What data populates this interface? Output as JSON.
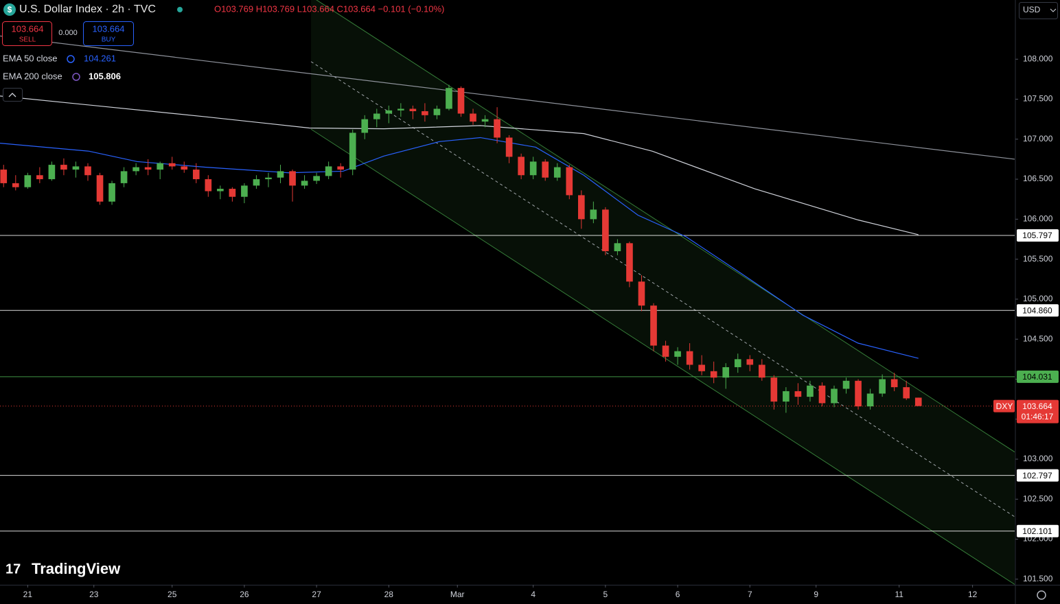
{
  "header": {
    "title": "U.S. Dollar Index · 2h · TVC",
    "ohlc": "O103.769 H103.769 L103.664 C103.664 −0.101 (−0.10%)",
    "sell_price": "103.664",
    "sell_label": "SELL",
    "spread": "0.000",
    "buy_price": "103.664",
    "buy_label": "BUY",
    "ema50_label": "EMA 50 close",
    "ema50_value": "104.261",
    "ema200_label": "EMA 200 close",
    "ema200_value": "105.806",
    "currency": "USD",
    "brand": "TradingView"
  },
  "chart_data": {
    "type": "candlestick",
    "up_color": "#4caf50",
    "down_color": "#e53935",
    "xlim": [
      -0.3,
      84
    ],
    "ylim": [
      101.43,
      108.74
    ],
    "xticks": [
      {
        "value": 2,
        "label": "21"
      },
      {
        "value": 7.5,
        "label": "23"
      },
      {
        "value": 14,
        "label": "25"
      },
      {
        "value": 20,
        "label": "26"
      },
      {
        "value": 26,
        "label": "27"
      },
      {
        "value": 32,
        "label": "28"
      },
      {
        "value": 37.7,
        "label": "Mar"
      },
      {
        "value": 44,
        "label": "4"
      },
      {
        "value": 50,
        "label": "5"
      },
      {
        "value": 56,
        "label": "6"
      },
      {
        "value": 62,
        "label": "7"
      },
      {
        "value": 67.5,
        "label": "9"
      },
      {
        "value": 74.4,
        "label": "11"
      },
      {
        "value": 80.5,
        "label": "12"
      }
    ],
    "yticks": [
      {
        "value": 101.5,
        "label": "101.500"
      },
      {
        "value": 102,
        "label": "102.000"
      },
      {
        "value": 102.5,
        "label": "102.500"
      },
      {
        "value": 103,
        "label": "103.000"
      },
      {
        "value": 103.5,
        "label": "103.500"
      },
      {
        "value": 104,
        "label": "104.000"
      },
      {
        "value": 104.5,
        "label": "104.500"
      },
      {
        "value": 105,
        "label": "105.000"
      },
      {
        "value": 105.5,
        "label": "105.500"
      },
      {
        "value": 106,
        "label": "106.000"
      },
      {
        "value": 106.5,
        "label": "106.500"
      },
      {
        "value": 107,
        "label": "107.000"
      },
      {
        "value": 107.5,
        "label": "107.500"
      },
      {
        "value": 108,
        "label": "108.000"
      }
    ],
    "candles": [
      [
        106.62,
        106.68,
        106.4,
        106.45
      ],
      [
        106.45,
        106.55,
        106.36,
        106.4
      ],
      [
        106.4,
        106.58,
        106.38,
        106.55
      ],
      [
        106.55,
        106.65,
        106.45,
        106.5
      ],
      [
        106.5,
        106.72,
        106.48,
        106.68
      ],
      [
        106.68,
        106.76,
        106.55,
        106.62
      ],
      [
        106.62,
        106.72,
        106.52,
        106.66
      ],
      [
        106.66,
        106.7,
        106.48,
        106.55
      ],
      [
        106.55,
        106.58,
        106.18,
        106.22
      ],
      [
        106.22,
        106.48,
        106.18,
        106.45
      ],
      [
        106.45,
        106.65,
        106.4,
        106.6
      ],
      [
        106.6,
        106.7,
        106.55,
        106.65
      ],
      [
        106.65,
        106.75,
        106.55,
        106.62
      ],
      [
        106.62,
        106.72,
        106.5,
        106.7
      ],
      [
        106.7,
        106.78,
        106.62,
        106.66
      ],
      [
        106.66,
        106.72,
        106.58,
        106.62
      ],
      [
        106.62,
        106.7,
        106.45,
        106.5
      ],
      [
        106.5,
        106.55,
        106.28,
        106.35
      ],
      [
        106.35,
        106.42,
        106.25,
        106.38
      ],
      [
        106.38,
        106.4,
        106.22,
        106.28
      ],
      [
        106.28,
        106.45,
        106.2,
        106.42
      ],
      [
        106.42,
        106.55,
        106.38,
        106.5
      ],
      [
        106.5,
        106.58,
        106.4,
        106.52
      ],
      [
        106.52,
        106.68,
        106.45,
        106.6
      ],
      [
        106.6,
        106.62,
        106.22,
        106.42
      ],
      [
        106.42,
        106.55,
        106.38,
        106.48
      ],
      [
        106.48,
        106.58,
        106.44,
        106.54
      ],
      [
        106.54,
        106.72,
        106.5,
        106.66
      ],
      [
        106.66,
        106.7,
        106.52,
        106.62
      ],
      [
        106.62,
        107.12,
        106.55,
        107.08
      ],
      [
        107.08,
        107.3,
        107.0,
        107.25
      ],
      [
        107.25,
        107.38,
        107.15,
        107.32
      ],
      [
        107.32,
        107.42,
        107.2,
        107.36
      ],
      [
        107.36,
        107.45,
        107.28,
        107.38
      ],
      [
        107.38,
        107.42,
        107.25,
        107.35
      ],
      [
        107.35,
        107.45,
        107.22,
        107.3
      ],
      [
        107.3,
        107.42,
        107.25,
        107.38
      ],
      [
        107.38,
        107.68,
        107.36,
        107.64
      ],
      [
        107.64,
        107.66,
        107.28,
        107.32
      ],
      [
        107.32,
        107.38,
        107.18,
        107.22
      ],
      [
        107.22,
        107.3,
        107.15,
        107.25
      ],
      [
        107.25,
        107.4,
        106.95,
        107.02
      ],
      [
        107.02,
        107.05,
        106.7,
        106.78
      ],
      [
        106.78,
        106.82,
        106.5,
        106.55
      ],
      [
        106.55,
        106.78,
        106.5,
        106.72
      ],
      [
        106.72,
        106.75,
        106.48,
        106.52
      ],
      [
        106.52,
        106.7,
        106.48,
        106.65
      ],
      [
        106.65,
        106.68,
        106.25,
        106.3
      ],
      [
        106.3,
        106.36,
        105.88,
        106.0
      ],
      [
        106.0,
        106.22,
        105.95,
        106.12
      ],
      [
        106.12,
        106.15,
        105.55,
        105.6
      ],
      [
        105.6,
        105.75,
        105.55,
        105.7
      ],
      [
        105.7,
        105.72,
        105.15,
        105.22
      ],
      [
        105.22,
        105.3,
        104.85,
        104.92
      ],
      [
        104.92,
        104.95,
        104.35,
        104.42
      ],
      [
        104.42,
        104.48,
        104.22,
        104.28
      ],
      [
        104.28,
        104.4,
        104.18,
        104.35
      ],
      [
        104.35,
        104.45,
        104.12,
        104.18
      ],
      [
        104.18,
        104.3,
        104.05,
        104.1
      ],
      [
        104.1,
        104.22,
        103.95,
        104.02
      ],
      [
        104.02,
        104.2,
        103.88,
        104.15
      ],
      [
        104.15,
        104.32,
        104.08,
        104.25
      ],
      [
        104.25,
        104.3,
        104.1,
        104.18
      ],
      [
        104.18,
        104.25,
        103.98,
        104.02
      ],
      [
        104.02,
        104.05,
        103.62,
        103.72
      ],
      [
        103.72,
        103.9,
        103.58,
        103.85
      ],
      [
        103.85,
        103.95,
        103.68,
        103.78
      ],
      [
        103.78,
        103.98,
        103.72,
        103.92
      ],
      [
        103.92,
        103.96,
        103.66,
        103.7
      ],
      [
        103.7,
        103.92,
        103.65,
        103.88
      ],
      [
        103.88,
        104.02,
        103.82,
        103.98
      ],
      [
        103.98,
        104.0,
        103.62,
        103.66
      ],
      [
        103.66,
        103.88,
        103.62,
        103.82
      ],
      [
        103.82,
        104.06,
        103.78,
        104.0
      ],
      [
        104.0,
        104.08,
        103.85,
        103.9
      ],
      [
        103.9,
        103.98,
        103.74,
        103.76
      ],
      [
        103.769,
        103.769,
        103.664,
        103.664
      ]
    ],
    "lines": [
      {
        "name": "EMA 50 close",
        "color": "#2962ff",
        "x": [
          -0.3,
          7.1,
          11.1,
          16.8,
          23.7,
          28.2,
          31.6,
          36.2,
          39.6,
          44.2,
          48.2,
          52.7,
          56.7,
          61.3,
          66.4,
          71,
          76
        ],
        "values": [
          106.95,
          106.85,
          106.72,
          106.65,
          106.58,
          106.6,
          106.79,
          106.97,
          107.02,
          106.9,
          106.55,
          106.05,
          105.78,
          105.32,
          104.8,
          104.45,
          104.261
        ]
      },
      {
        "name": "EMA 200 close",
        "color": "#d1d4dc",
        "x": [
          -0.3,
          16.8,
          25.4,
          31.6,
          39.6,
          48.2,
          53.9,
          62.4,
          71,
          76
        ],
        "values": [
          107.54,
          107.28,
          107.14,
          107.13,
          107.17,
          107.07,
          106.85,
          106.38,
          105.99,
          105.806
        ]
      },
      {
        "color": "#8f939c",
        "x": [
          -0.3,
          84
        ],
        "values": [
          108.29,
          106.75
        ]
      }
    ],
    "channel": {
      "x": [
        25.54,
        84
      ],
      "upper": [
        108.785,
        103.09
      ],
      "mid": [
        107.97,
        102.28
      ],
      "lower": [
        107.125,
        101.435
      ],
      "color": "#4caf50"
    },
    "levels": [
      {
        "value": 105.797,
        "label": "105.797",
        "color": "#ffffff"
      },
      {
        "value": 104.86,
        "label": "104.860",
        "color": "#ffffff"
      },
      {
        "value": 104.031,
        "label": "104.031",
        "color": "#4caf50"
      },
      {
        "value": 102.797,
        "label": "102.797",
        "color": "#ffffff"
      },
      {
        "value": 102.101,
        "label": "102.101",
        "color": "#ffffff"
      }
    ],
    "last_price": {
      "value": 103.664,
      "label": "103.664",
      "symbol": "DXY",
      "countdown": "01:46:17",
      "color": "#e53935"
    }
  }
}
